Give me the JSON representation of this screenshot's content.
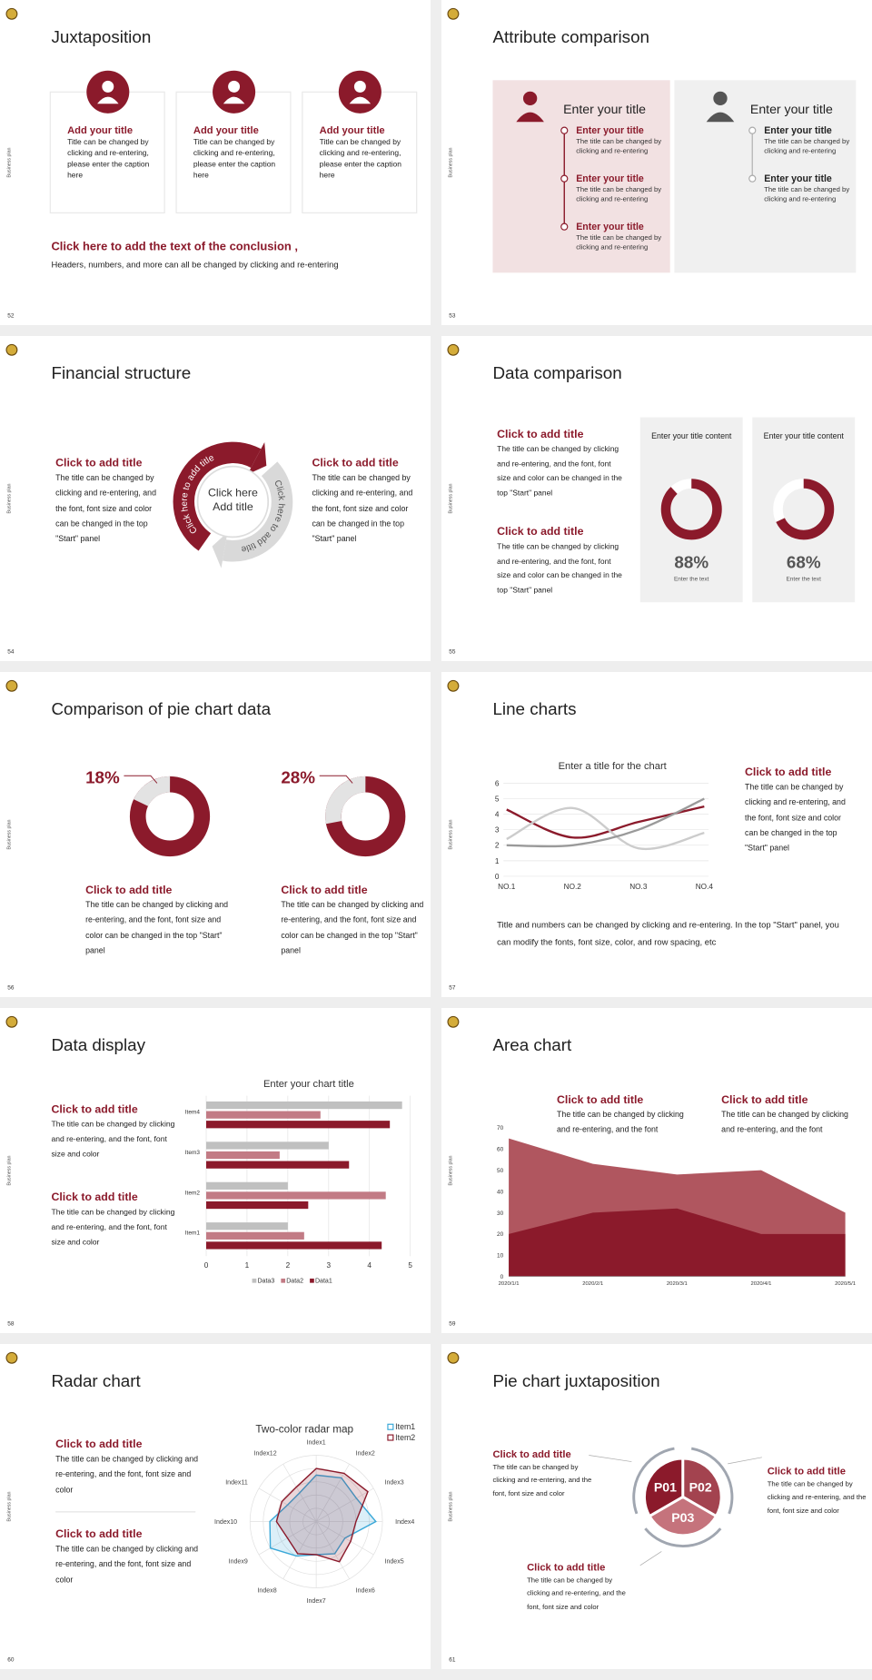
{
  "side_label": "Business plan",
  "slides": [
    {
      "number": 52,
      "title": "Juxtaposition",
      "cards": [
        {
          "title": "Add your title",
          "text": "Title can be changed by clicking and re-entering, please enter the caption here"
        },
        {
          "title": "Add your title",
          "text": "Title can be changed by clicking and re-entering, please enter the caption here"
        },
        {
          "title": "Add your title",
          "text": "Title can be changed by clicking and re-entering, please enter the caption here"
        }
      ],
      "conclusion_title": "Click here to add the text of the conclusion ,",
      "conclusion_text": "Headers, numbers, and more can all be changed by clicking and re-entering"
    },
    {
      "number": 53,
      "title": "Attribute comparison",
      "panels": [
        {
          "header": "Enter your title",
          "items": [
            {
              "title": "Enter your title",
              "text": "The title can be changed by clicking and re-entering"
            },
            {
              "title": "Enter your title",
              "text": "The title can be changed by clicking and re-entering"
            },
            {
              "title": "Enter your title",
              "text": "The title can be changed by clicking and re-entering"
            }
          ]
        },
        {
          "header": "Enter your title",
          "items": [
            {
              "title": "Enter your title",
              "text": "The title can be changed by clicking and re-entering"
            },
            {
              "title": "Enter your title",
              "text": "The title can be changed by clicking and re-entering"
            }
          ]
        }
      ]
    },
    {
      "number": 54,
      "title": "Financial structure",
      "blocks": [
        {
          "title": "Click to add title",
          "text": "The title can be changed by clicking and re-entering, and the font, font size and color can be changed in the top \"Start\" panel"
        },
        {
          "title": "Click to add title",
          "text": "The title can be changed by clicking and re-entering, and the font, font size and color can be changed in the top \"Start\" panel"
        }
      ],
      "cycle": {
        "center": [
          "Click here",
          "Add title"
        ],
        "arcs": [
          "Click here to add title",
          "Click here to add title"
        ]
      }
    },
    {
      "number": 55,
      "title": "Data comparison",
      "blocks": [
        {
          "title": "Click to add title",
          "text": "The title can be changed by clicking and re-entering, and the font, font size and color can be changed in the top \"Start\" panel"
        },
        {
          "title": "Click to add title",
          "text": "The title can be changed by clicking and re-entering, and the font, font size and color can be changed in the top \"Start\" panel"
        }
      ],
      "donuts": [
        {
          "title": "Enter your title content",
          "value": 88,
          "value_label": "88%",
          "caption": "Enter the text"
        },
        {
          "title": "Enter your title content",
          "value": 68,
          "value_label": "68%",
          "caption": "Enter the text"
        }
      ]
    },
    {
      "number": 56,
      "title": "Comparison of pie chart data",
      "charts": [
        {
          "type": "donut",
          "value": 18,
          "value_label": "18%",
          "title": "Click to add title",
          "text": "The title can be changed by clicking and re-entering, and the font, font size and color can be changed in the top \"Start\" panel"
        },
        {
          "type": "donut",
          "value": 28,
          "value_label": "28%",
          "title": "Click to add title",
          "text": "The title can be changed by clicking and re-entering, and the font, font size and color can be changed in the top \"Start\" panel"
        }
      ]
    },
    {
      "number": 57,
      "title": "Line charts",
      "chart": {
        "type": "line",
        "title": "Enter a title for the chart",
        "categories": [
          "NO.1",
          "NO.2",
          "NO.3",
          "NO.4"
        ],
        "series": [
          {
            "color": "#8b1a2b",
            "values": [
              4.3,
              2.5,
              3.5,
              4.5
            ]
          },
          {
            "color": "#cccccc",
            "values": [
              2.4,
              4.4,
              1.8,
              2.8
            ]
          },
          {
            "color": "#9a9a9a",
            "values": [
              2,
              2,
              3,
              5
            ]
          }
        ],
        "ylim": [
          0,
          6
        ],
        "yticks": [
          0,
          1,
          2,
          3,
          4,
          5,
          6
        ],
        "grid": true
      },
      "block": {
        "title": "Click to add title",
        "text": "The title can be changed by clicking and re-entering, and the font, font size and color can be changed in the top \"Start\" panel"
      },
      "note": "Title and numbers can be changed by clicking and re-entering. In the top \"Start\" panel, you can modify the fonts, font size, color, and row spacing, etc"
    },
    {
      "number": 58,
      "title": "Data display",
      "blocks": [
        {
          "title": "Click to add title",
          "text": "The title can be changed by clicking and re-entering, and the font, font size and color"
        },
        {
          "title": "Click to add title",
          "text": "The title can be changed by clicking and re-entering, and the font, font size and color"
        }
      ],
      "chart": {
        "type": "bar",
        "orientation": "horizontal",
        "title": "Enter your chart title",
        "categories": [
          "Item1",
          "Item2",
          "Item3",
          "Item4"
        ],
        "series": [
          {
            "name": "Data3",
            "color": "#c0c0c0",
            "values": [
              2,
              2,
              3,
              4.8
            ]
          },
          {
            "name": "Data2",
            "color": "#c27b85",
            "values": [
              2.4,
              4.4,
              1.8,
              2.8
            ]
          },
          {
            "name": "Data1",
            "color": "#8b1a2b",
            "values": [
              4.3,
              2.5,
              3.5,
              4.5
            ]
          }
        ],
        "xlim": [
          0,
          5
        ],
        "xticks": [
          0,
          1,
          2,
          3,
          4,
          5
        ],
        "grid": true
      }
    },
    {
      "number": 59,
      "title": "Area chart",
      "blocks": [
        {
          "title": "Click to add title",
          "text": "The title can be changed by clicking and re-entering, and the font"
        },
        {
          "title": "Click to add title",
          "text": "The title can be changed by clicking and re-entering, and the font"
        }
      ],
      "chart": {
        "type": "area",
        "categories": [
          "2020/1/1",
          "2020/2/1",
          "2020/3/1",
          "2020/4/1",
          "2020/5/1"
        ],
        "series": [
          {
            "color": "#b0565f",
            "values": [
              65,
              53,
              48,
              50,
              30
            ]
          },
          {
            "color": "#8b1a2b",
            "values": [
              20,
              30,
              32,
              20,
              20
            ]
          }
        ],
        "ylim": [
          0,
          70
        ],
        "yticks": [
          0,
          10,
          20,
          30,
          40,
          50,
          60,
          70
        ]
      }
    },
    {
      "number": 60,
      "title": "Radar chart",
      "blocks": [
        {
          "title": "Click to add title",
          "text": "The title can be changed by clicking and re-entering, and the font, font size and color"
        },
        {
          "title": "Click to add title",
          "text": "The title can be changed by clicking and re-entering, and the font, font size and color"
        }
      ],
      "chart": {
        "type": "radar",
        "title": "Two-color radar map",
        "categories": [
          "Index1",
          "Index2",
          "Index3",
          "Index4",
          "Index5",
          "Index6",
          "Index7",
          "Index8",
          "Index9",
          "Index10",
          "Index11",
          "Index12"
        ],
        "series": [
          {
            "name": "Item1",
            "color": "#3aa8d8",
            "values": [
              3.5,
              3.8,
              3.5,
              4.5,
              2.5,
              2.8,
              2.5,
              3,
              4,
              3.5,
              2.5,
              2.5
            ]
          },
          {
            "name": "Item2",
            "color": "#8b1a2b",
            "values": [
              4,
              4.2,
              4.5,
              3,
              3,
              3.5,
              2.5,
              2.8,
              2.5,
              3,
              3,
              3
            ]
          }
        ],
        "rlim": [
          0,
          5
        ]
      }
    },
    {
      "number": 61,
      "title": "Pie chart juxtaposition",
      "segments": [
        "P01",
        "P02",
        "P03"
      ],
      "blocks": [
        {
          "title": "Click to add title",
          "text": "The title can be changed by clicking and re-entering, and the font, font size and color"
        },
        {
          "title": "Click to add title",
          "text": "The title can be changed by clicking and re-entering, and the font, font size and color"
        },
        {
          "title": "Click to add title",
          "text": "The title can be changed by clicking and re-entering, and the font, font size and color"
        }
      ]
    }
  ]
}
